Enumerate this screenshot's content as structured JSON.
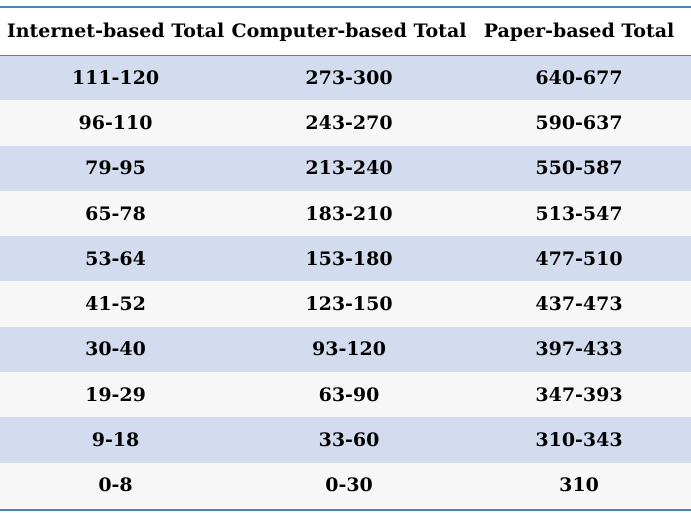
{
  "table": {
    "headers": [
      "Internet-based Total",
      "Computer-based Total",
      "Paper-based Total"
    ],
    "rows": [
      [
        "111-120",
        "273-300",
        "640-677"
      ],
      [
        "96-110",
        "243-270",
        "590-637"
      ],
      [
        "79-95",
        "213-240",
        "550-587"
      ],
      [
        "65-78",
        "183-210",
        "513-547"
      ],
      [
        "53-64",
        "153-180",
        "477-510"
      ],
      [
        "41-52",
        "123-150",
        "437-473"
      ],
      [
        "30-40",
        "93-120",
        "397-433"
      ],
      [
        "19-29",
        "63-90",
        "347-393"
      ],
      [
        "9-18",
        "33-60",
        "310-343"
      ],
      [
        "0-8",
        "0-30",
        "310"
      ]
    ]
  },
  "colors": {
    "accent_rule": "#4f81bd",
    "band_row": "#d3dcee",
    "plain_row": "#f7f7f7"
  }
}
